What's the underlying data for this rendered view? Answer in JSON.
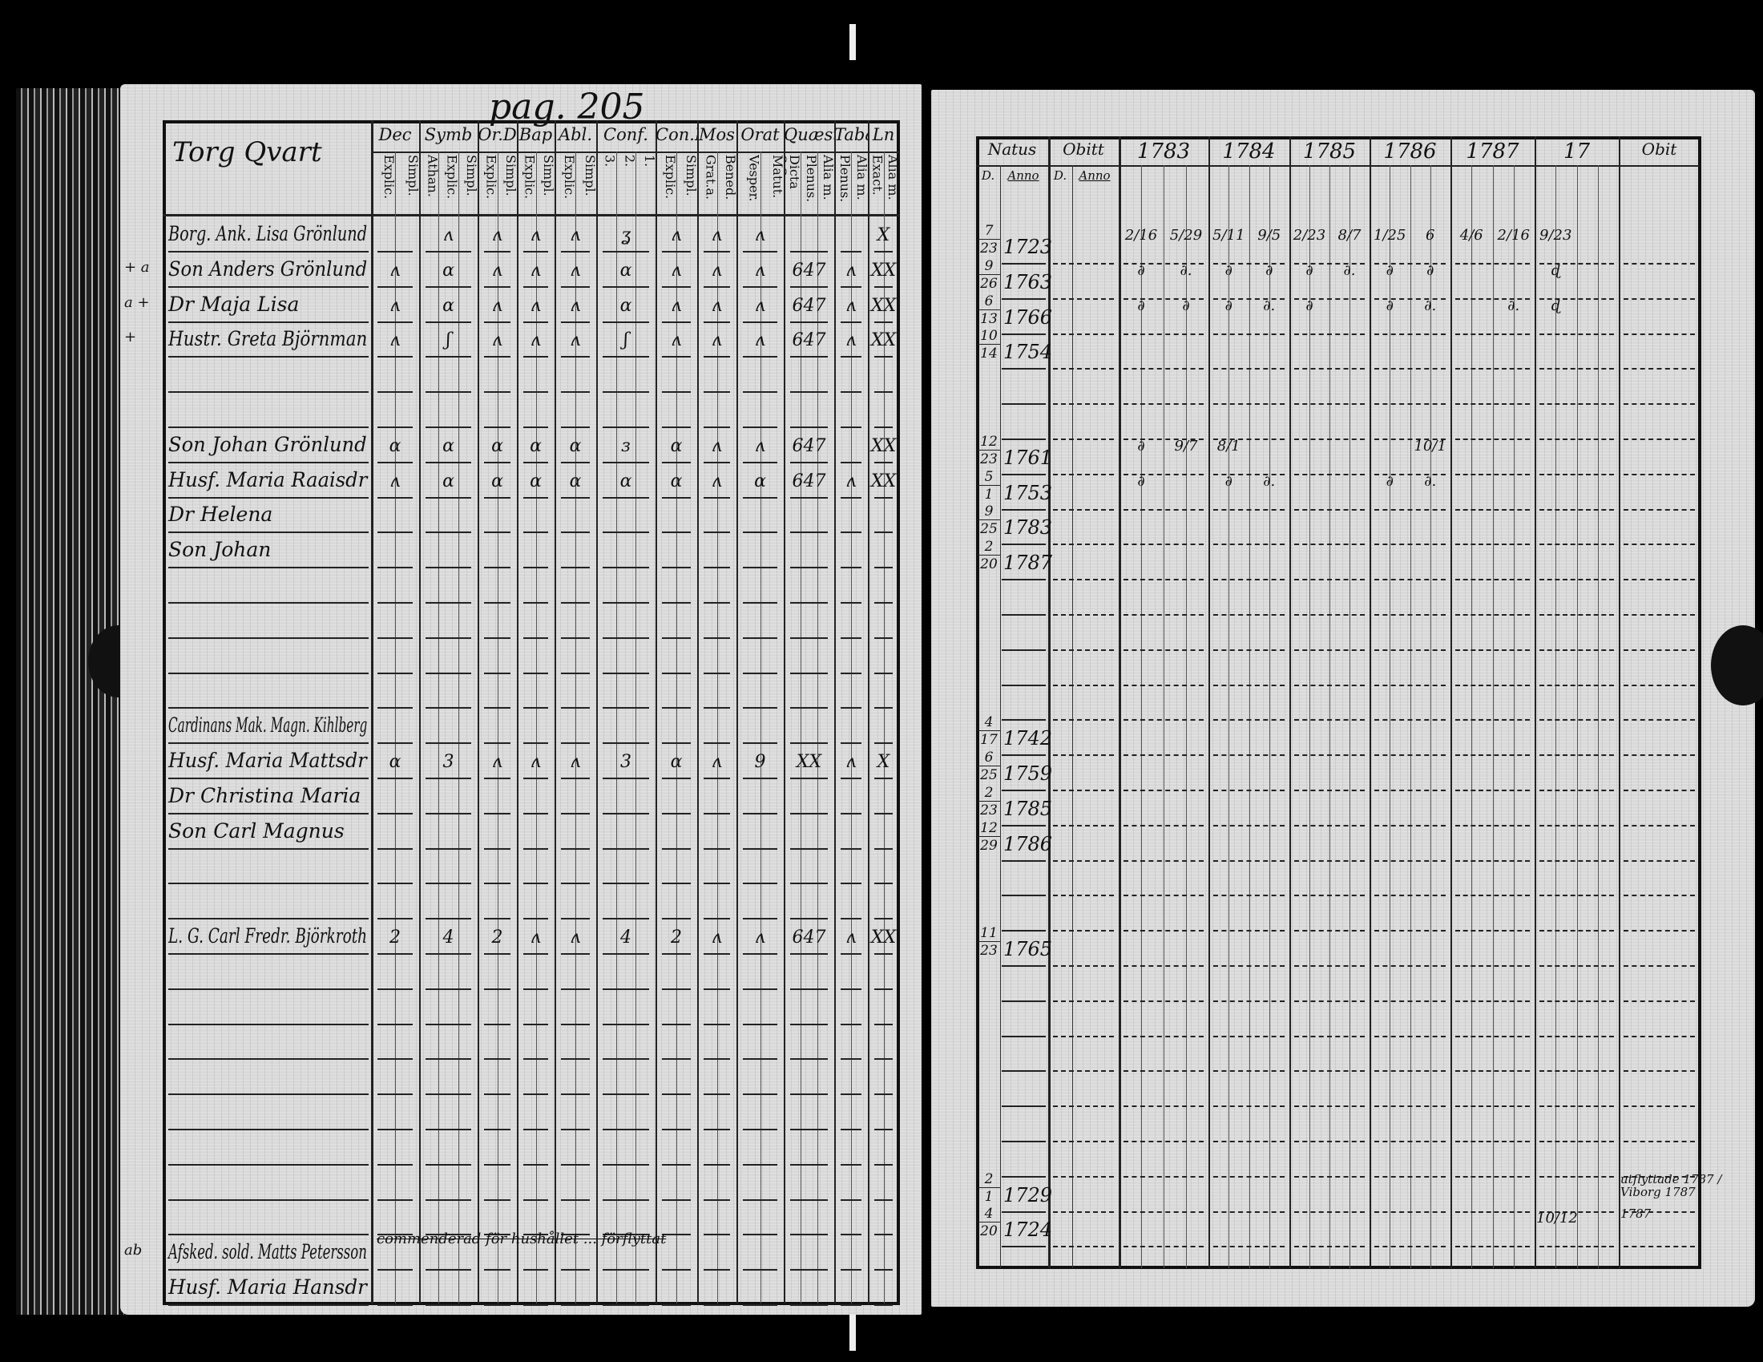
{
  "left_page": {
    "page_number": "pag. 205",
    "place_heading": "Torg Qvart",
    "columns": [
      {
        "label": "Dec",
        "sub": [
          "Simpl.",
          "Explic."
        ]
      },
      {
        "label": "Symb",
        "sub": [
          "Simpl.",
          "Explic.",
          "Athan."
        ]
      },
      {
        "label": "Or.D",
        "sub": [
          "Simpl.",
          "Explic."
        ]
      },
      {
        "label": "Bap",
        "sub": [
          "Simpl.",
          "Explic."
        ]
      },
      {
        "label": "Abl.",
        "sub": [
          "Simpl.",
          "Explic."
        ]
      },
      {
        "label": "Conf.",
        "sub": [
          "1.",
          "2.",
          "3."
        ]
      },
      {
        "label": "Con.D",
        "sub": [
          "Simpl.",
          "Explic."
        ]
      },
      {
        "label": "Mos",
        "sub": [
          "Bened.",
          "Grat.a."
        ]
      },
      {
        "label": "Orat",
        "sub": [
          "Matut.",
          "Vesper."
        ]
      },
      {
        "label": "Quæst",
        "sub": [
          "Alia m.",
          "Plenus.",
          "Dicta S.S."
        ]
      },
      {
        "label": "Taba",
        "sub": [
          "Alia m.",
          "Plenus."
        ]
      },
      {
        "label": "Ln",
        "sub": [
          "Alia m.",
          "Exact."
        ]
      }
    ],
    "rows": [
      {
        "name": "Borg. Ank. Lisa Grönlund",
        "marks": [
          "",
          "ʌ",
          "ʌ",
          "ʌ",
          "ʌ",
          "ʓ",
          "ʌ",
          "ʌ",
          "ʌ",
          "",
          "",
          "X"
        ]
      },
      {
        "name": "Son Anders Grönlund",
        "prefix": "+ a",
        "marks": [
          "ʌ",
          "ɑ",
          "ʌ",
          "ʌ",
          "ʌ",
          "ɑ",
          "ʌ",
          "ʌ",
          "ʌ",
          "647",
          "ʌ",
          "XX"
        ]
      },
      {
        "name": "Dr Maja Lisa",
        "prefix": "a +",
        "marks": [
          "ʌ",
          "ɑ",
          "ʌ",
          "ʌ",
          "ʌ",
          "ɑ",
          "ʌ",
          "ʌ",
          "ʌ",
          "647",
          "ʌ",
          "XX"
        ]
      },
      {
        "name": "Hustr. Greta Björnman",
        "prefix": "+",
        "marks": [
          "ʌ",
          "ʃ",
          "ʌ",
          "ʌ",
          "ʌ",
          "ʃ",
          "ʌ",
          "ʌ",
          "ʌ",
          "647",
          "ʌ",
          "XX"
        ]
      },
      {
        "name": "",
        "marks": []
      },
      {
        "name": "",
        "marks": []
      },
      {
        "name": "Son Johan Grönlund",
        "marks": [
          "ɑ",
          "ɑ",
          "ɑ",
          "ɑ",
          "ɑ",
          "ɜ",
          "ɑ",
          "ʌ",
          "ʌ",
          "647",
          "",
          "XX"
        ]
      },
      {
        "name": "Husf. Maria Raaisdr",
        "marks": [
          "ʌ",
          "ɑ",
          "ɑ",
          "ɑ",
          "ɑ",
          "ɑ",
          "ɑ",
          "ʌ",
          "ɑ",
          "647",
          "ʌ",
          "XX"
        ]
      },
      {
        "name": "Dr Helena",
        "marks": []
      },
      {
        "name": "Son Johan",
        "marks": []
      },
      {
        "name": "",
        "marks": []
      },
      {
        "name": "",
        "marks": []
      },
      {
        "name": "",
        "marks": []
      },
      {
        "name": "",
        "marks": []
      },
      {
        "name": "Cardinans Mak. Magn. Kihlberg",
        "marks": []
      },
      {
        "name": "Husf. Maria Mattsdr",
        "marks": [
          "ɑ",
          "3",
          "ʌ",
          "ʌ",
          "ʌ",
          "3",
          "ɑ",
          "ʌ",
          "9",
          "XX",
          "ʌ",
          "X"
        ]
      },
      {
        "name": "Dr Christina Maria",
        "marks": []
      },
      {
        "name": "Son Carl Magnus",
        "marks": []
      },
      {
        "name": "",
        "marks": []
      },
      {
        "name": "",
        "marks": []
      },
      {
        "name": "L. G. Carl Fredr. Björkroth",
        "marks": [
          "2",
          "4",
          "2",
          "ʌ",
          "ʌ",
          "4",
          "2",
          "ʌ",
          "ʌ",
          "647",
          "ʌ",
          "XX"
        ]
      },
      {
        "name": "",
        "marks": []
      },
      {
        "name": "",
        "marks": []
      },
      {
        "name": "",
        "marks": []
      },
      {
        "name": "",
        "marks": []
      },
      {
        "name": "",
        "marks": []
      },
      {
        "name": "",
        "marks": []
      },
      {
        "name": "",
        "marks": []
      },
      {
        "name": "",
        "marks": []
      },
      {
        "name": "Afsked. sold. Matts Petersson",
        "prefix": "ab",
        "note": "commenderad för hushållet ... förflyttat",
        "marks": []
      },
      {
        "name": "Husf. Maria Hansdr",
        "marks": []
      }
    ]
  },
  "right_page": {
    "columns": [
      {
        "label": "Natus",
        "sub": [
          "D.",
          "Anno"
        ]
      },
      {
        "label": "Obitt",
        "sub": [
          "D.",
          "Anno"
        ]
      },
      {
        "label": "1783"
      },
      {
        "label": "1784"
      },
      {
        "label": "1785"
      },
      {
        "label": "1786"
      },
      {
        "label": "1787"
      },
      {
        "label": "17"
      },
      {
        "label": "Obit"
      }
    ],
    "rows": [
      {
        "day": "7",
        "month": "23",
        "year": "1723",
        "exams": [
          [
            "2/16",
            "5/29"
          ],
          [
            "5/11",
            "9/5"
          ],
          [
            "2/23",
            "8/7"
          ],
          [
            "1/25",
            "6"
          ],
          [
            "4/6",
            "2/16"
          ],
          [
            "9/23",
            ""
          ]
        ]
      },
      {
        "day": "9",
        "month": "26",
        "year": "1763",
        "exams": [
          [
            "∂",
            "∂."
          ],
          [
            "∂",
            "∂"
          ],
          [
            "∂",
            "∂."
          ],
          [
            "∂",
            "∂"
          ],
          [
            "",
            ""
          ],
          [
            "ɖ",
            ""
          ]
        ]
      },
      {
        "day": "6",
        "month": "13",
        "year": "1766",
        "exams": [
          [
            "∂",
            "∂"
          ],
          [
            "∂",
            "∂."
          ],
          [
            "∂",
            ""
          ],
          [
            "∂",
            "∂."
          ],
          [
            "",
            "∂."
          ],
          [
            "ɖ",
            ""
          ]
        ]
      },
      {
        "day": "10",
        "month": "14",
        "year": "1754",
        "exams": []
      },
      {
        "day": "",
        "month": "",
        "year": "",
        "exams": []
      },
      {
        "day": "",
        "month": "",
        "year": "",
        "exams": []
      },
      {
        "day": "12",
        "month": "23",
        "year": "1761",
        "exams": [
          [
            "∂",
            "9/7"
          ],
          [
            "8/1",
            ""
          ],
          [
            "",
            ""
          ],
          [
            "",
            "10/1"
          ],
          [
            "",
            ""
          ],
          [
            "",
            ""
          ]
        ]
      },
      {
        "day": "5",
        "month": "1",
        "year": "1753",
        "exams": [
          [
            "∂",
            ""
          ],
          [
            "∂",
            "∂."
          ],
          [
            "",
            ""
          ],
          [
            "∂",
            "∂."
          ],
          [
            "",
            ""
          ],
          [
            "",
            ""
          ]
        ]
      },
      {
        "day": "9",
        "month": "25",
        "year": "1783",
        "exams": []
      },
      {
        "day": "2",
        "month": "20",
        "year": "1787",
        "exams": []
      },
      {
        "day": "",
        "month": "",
        "year": "",
        "exams": []
      },
      {
        "day": "",
        "month": "",
        "year": "",
        "exams": []
      },
      {
        "day": "",
        "month": "",
        "year": "",
        "exams": []
      },
      {
        "day": "",
        "month": "",
        "year": "",
        "exams": []
      },
      {
        "day": "4",
        "month": "17",
        "year": "1742",
        "exams": []
      },
      {
        "day": "6",
        "month": "25",
        "year": "1759",
        "exams": []
      },
      {
        "day": "2",
        "month": "23",
        "year": "1785",
        "exams": []
      },
      {
        "day": "12",
        "month": "29",
        "year": "1786",
        "exams": []
      },
      {
        "day": "",
        "month": "",
        "year": "",
        "exams": []
      },
      {
        "day": "",
        "month": "",
        "year": "",
        "exams": []
      },
      {
        "day": "11",
        "month": "23",
        "year": "1765",
        "exams": []
      },
      {
        "day": "",
        "month": "",
        "year": "",
        "exams": []
      },
      {
        "day": "",
        "month": "",
        "year": "",
        "exams": []
      },
      {
        "day": "",
        "month": "",
        "year": "",
        "exams": []
      },
      {
        "day": "",
        "month": "",
        "year": "",
        "exams": []
      },
      {
        "day": "",
        "month": "",
        "year": "",
        "exams": []
      },
      {
        "day": "",
        "month": "",
        "year": "",
        "exams": []
      },
      {
        "day": "2",
        "month": "1",
        "year": "1729",
        "exams": [
          [
            "",
            ""
          ],
          [
            "",
            ""
          ],
          [
            "",
            ""
          ],
          [
            "",
            ""
          ],
          [
            "",
            ""
          ],
          [
            "",
            ""
          ]
        ],
        "obit": "utflyttade 1787 / Viborg 1787"
      },
      {
        "day": "4",
        "month": "20",
        "year": "1724",
        "exams": [
          [
            "",
            ""
          ],
          [
            "",
            ""
          ],
          [
            "",
            ""
          ],
          [
            "",
            ""
          ],
          [
            "",
            ""
          ],
          [
            "10/12",
            ""
          ]
        ],
        "obit": "1787"
      }
    ]
  }
}
